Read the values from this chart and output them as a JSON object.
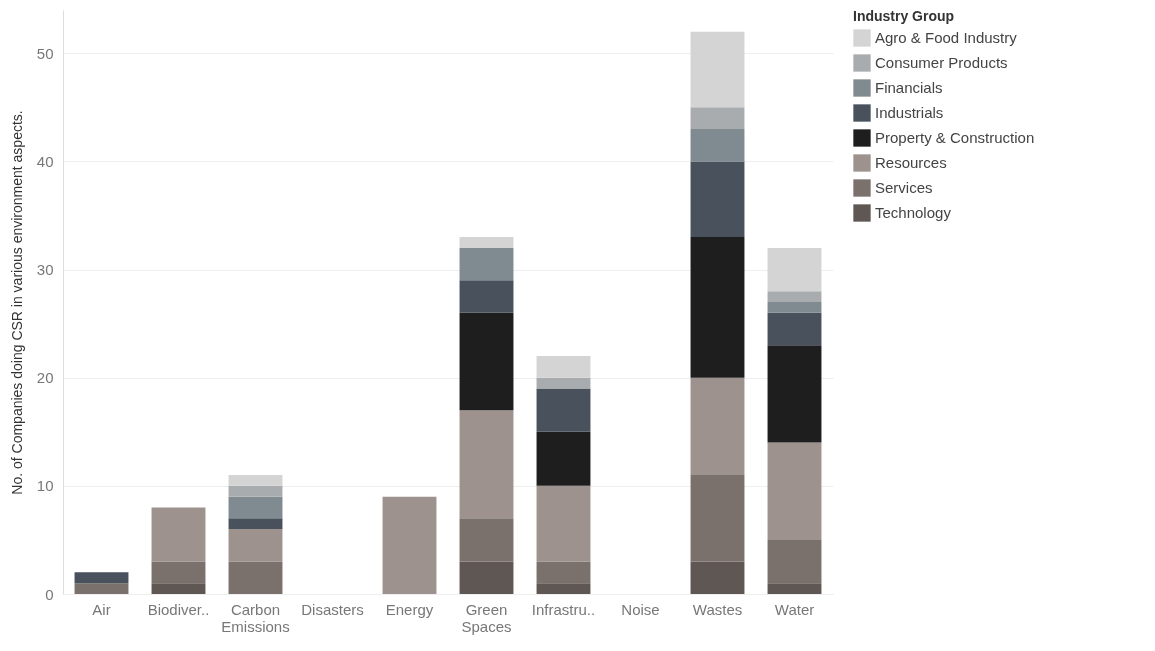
{
  "chart_data": {
    "type": "bar",
    "stacked": true,
    "ylabel": "No. of Companies doing CSR in various environment aspects.",
    "legend_title": "Industry Group",
    "legend": "top right",
    "grid": "y",
    "categories": [
      "Air",
      "Biodiver..",
      "Carbon Emissions",
      "Disasters",
      "Energy",
      "Green Spaces",
      "Infrastru..",
      "Noise",
      "Wastes",
      "Water"
    ],
    "ylim": [
      0,
      54
    ],
    "yticks": [
      0,
      10,
      20,
      30,
      40,
      50
    ],
    "series": [
      {
        "name": "Technology",
        "color": "#5f5753",
        "values": [
          null,
          1,
          null,
          null,
          null,
          3,
          1,
          null,
          3,
          1
        ]
      },
      {
        "name": "Services",
        "color": "#7a706c",
        "values": [
          1,
          2,
          3,
          null,
          null,
          4,
          2,
          null,
          8,
          4
        ]
      },
      {
        "name": "Resources",
        "color": "#9d928e",
        "values": [
          null,
          5,
          3,
          null,
          9,
          10,
          7,
          null,
          9,
          9
        ]
      },
      {
        "name": "Property & Construction",
        "color": "#1e1e1e",
        "values": [
          null,
          null,
          null,
          null,
          null,
          9,
          5,
          null,
          13,
          9
        ]
      },
      {
        "name": "Industrials",
        "color": "#48515c",
        "values": [
          1,
          null,
          1,
          null,
          null,
          3,
          4,
          null,
          7,
          3
        ]
      },
      {
        "name": "Financials",
        "color": "#7f8a91",
        "values": [
          null,
          null,
          2,
          null,
          null,
          3,
          null,
          null,
          3,
          1
        ]
      },
      {
        "name": "Consumer Products",
        "color": "#a9acae",
        "values": [
          null,
          null,
          1,
          null,
          null,
          null,
          1,
          null,
          2,
          1
        ]
      },
      {
        "name": "Agro & Food Industry",
        "color": "#d4d4d4",
        "values": [
          null,
          null,
          1,
          null,
          null,
          1,
          2,
          null,
          7,
          4
        ]
      }
    ]
  }
}
